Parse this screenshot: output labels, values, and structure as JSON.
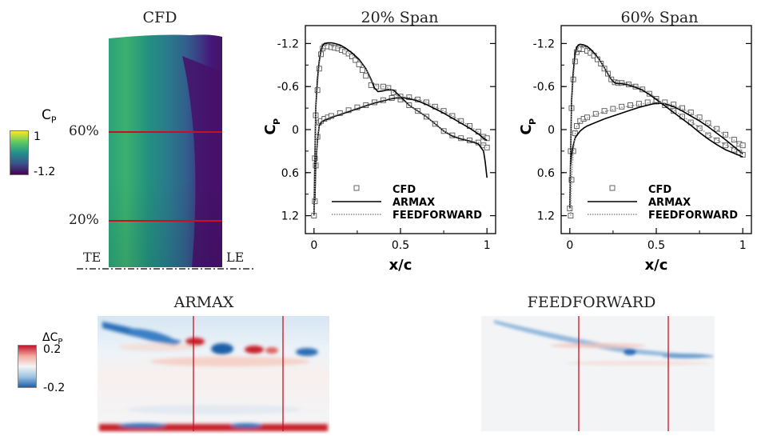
{
  "panels": {
    "cfd_contour": {
      "title": "CFD",
      "span_labels": [
        "60%",
        "20%"
      ],
      "edge_labels": {
        "te": "TE",
        "le": "LE"
      },
      "colorbar": {
        "label": "C",
        "sub": "P",
        "max": "1",
        "min": "-1.2",
        "colors": [
          "#440154",
          "#3b528b",
          "#21918c",
          "#5ec962",
          "#fde725"
        ]
      }
    },
    "armax_contour": {
      "title": "ARMAX"
    },
    "feedforward_contour": {
      "title": "FEEDFORWARD"
    },
    "error_colorbar": {
      "label": "ΔC",
      "sub": "P",
      "max": "0.2",
      "min": "-0.2",
      "colors": [
        "#1f5fa8",
        "#9cc4e4",
        "#f5f5f5",
        "#f4a9a0",
        "#c0152a"
      ]
    },
    "line_color": "#c8101e"
  },
  "chart_data": [
    {
      "type": "line",
      "title": "20% Span",
      "xlabel": "x/c",
      "ylabel": "C",
      "ylabel_sub": "P",
      "xlim": [
        -0.05,
        1.05
      ],
      "ylim": [
        1.45,
        -1.45
      ],
      "y_inverted": true,
      "xticks": [
        "0",
        "0.5",
        "1"
      ],
      "yticks": [
        "-1.2",
        "-0.6",
        "0",
        "0.6",
        "1.2"
      ],
      "grid": false,
      "legend_position": "bottom-right",
      "series": [
        {
          "name": "CFD",
          "style": "markers",
          "upper": {
            "x": [
              0,
              0.005,
              0.01,
              0.02,
              0.03,
              0.04,
              0.05,
              0.06,
              0.08,
              0.1,
              0.12,
              0.14,
              0.16,
              0.18,
              0.2,
              0.22,
              0.24,
              0.26,
              0.28,
              0.3,
              0.33,
              0.36,
              0.4,
              0.43,
              0.46,
              0.5,
              0.55,
              0.6,
              0.65,
              0.7,
              0.75,
              0.8,
              0.85,
              0.9,
              0.95,
              0.98,
              1.0
            ],
            "y": [
              1.2,
              0.4,
              -0.2,
              -0.55,
              -0.85,
              -1.05,
              -1.13,
              -1.16,
              -1.16,
              -1.15,
              -1.14,
              -1.13,
              -1.11,
              -1.09,
              -1.06,
              -1.02,
              -0.97,
              -0.91,
              -0.83,
              -0.75,
              -0.62,
              -0.6,
              -0.6,
              -0.58,
              -0.52,
              -0.42,
              -0.34,
              -0.26,
              -0.18,
              -0.08,
              0.02,
              0.08,
              0.12,
              0.15,
              0.18,
              0.22,
              0.25
            ]
          },
          "lower": {
            "x": [
              0.005,
              0.01,
              0.02,
              0.03,
              0.04,
              0.06,
              0.08,
              0.1,
              0.15,
              0.2,
              0.25,
              0.3,
              0.35,
              0.4,
              0.45,
              0.5,
              0.55,
              0.6,
              0.65,
              0.7,
              0.75,
              0.8,
              0.85,
              0.9,
              0.95,
              0.98,
              1.0
            ],
            "y": [
              1.0,
              0.5,
              0.1,
              -0.1,
              -0.12,
              -0.15,
              -0.17,
              -0.19,
              -0.23,
              -0.27,
              -0.31,
              -0.34,
              -0.38,
              -0.41,
              -0.44,
              -0.46,
              -0.45,
              -0.42,
              -0.38,
              -0.32,
              -0.26,
              -0.19,
              -0.12,
              -0.05,
              0.03,
              0.1,
              0.12
            ]
          }
        },
        {
          "name": "ARMAX",
          "style": "solid",
          "upper": {
            "x": [
              0,
              0.005,
              0.01,
              0.02,
              0.03,
              0.04,
              0.05,
              0.06,
              0.08,
              0.1,
              0.12,
              0.15,
              0.18,
              0.22,
              0.26,
              0.3,
              0.33,
              0.35,
              0.37,
              0.4,
              0.43,
              0.46,
              0.5,
              0.55,
              0.6,
              0.65,
              0.7,
              0.75,
              0.8,
              0.85,
              0.9,
              0.95,
              0.98,
              0.99,
              1.0
            ],
            "y": [
              1.2,
              0.4,
              -0.3,
              -0.7,
              -0.95,
              -1.1,
              -1.17,
              -1.2,
              -1.21,
              -1.21,
              -1.2,
              -1.18,
              -1.14,
              -1.07,
              -0.98,
              -0.85,
              -0.7,
              -0.58,
              -0.53,
              -0.54,
              -0.56,
              -0.55,
              -0.46,
              -0.34,
              -0.26,
              -0.18,
              -0.08,
              0.02,
              0.09,
              0.13,
              0.16,
              0.2,
              0.3,
              0.45,
              0.67
            ]
          },
          "lower": {
            "x": [
              0.005,
              0.01,
              0.02,
              0.03,
              0.04,
              0.06,
              0.08,
              0.1,
              0.15,
              0.2,
              0.25,
              0.3,
              0.35,
              0.4,
              0.45,
              0.5,
              0.55,
              0.6,
              0.65,
              0.7,
              0.75,
              0.8,
              0.85,
              0.9,
              0.95,
              0.98,
              1.0
            ],
            "y": [
              1.0,
              0.5,
              0.15,
              -0.05,
              -0.1,
              -0.13,
              -0.15,
              -0.17,
              -0.21,
              -0.25,
              -0.29,
              -0.33,
              -0.37,
              -0.4,
              -0.43,
              -0.45,
              -0.43,
              -0.4,
              -0.35,
              -0.29,
              -0.23,
              -0.16,
              -0.09,
              -0.02,
              0.06,
              0.12,
              0.15
            ]
          }
        },
        {
          "name": "FEEDFORWARD",
          "style": "dotted",
          "upper": {
            "x": [
              0,
              0.005,
              0.01,
              0.02,
              0.03,
              0.04,
              0.05,
              0.06,
              0.08,
              0.1,
              0.12,
              0.15,
              0.18,
              0.22,
              0.26,
              0.3,
              0.33,
              0.36,
              0.4,
              0.43,
              0.46,
              0.5,
              0.55,
              0.6,
              0.65,
              0.7,
              0.75,
              0.8,
              0.85,
              0.9,
              0.95,
              0.98,
              1.0
            ],
            "y": [
              1.2,
              0.4,
              -0.25,
              -0.6,
              -0.9,
              -1.07,
              -1.14,
              -1.17,
              -1.18,
              -1.17,
              -1.15,
              -1.13,
              -1.1,
              -1.04,
              -0.96,
              -0.84,
              -0.68,
              -0.61,
              -0.6,
              -0.58,
              -0.52,
              -0.43,
              -0.34,
              -0.26,
              -0.18,
              -0.08,
              0.02,
              0.08,
              0.12,
              0.15,
              0.18,
              0.22,
              0.25
            ]
          },
          "lower": {
            "x": [
              0.005,
              0.01,
              0.02,
              0.03,
              0.04,
              0.06,
              0.08,
              0.1,
              0.15,
              0.2,
              0.25,
              0.3,
              0.35,
              0.4,
              0.45,
              0.5,
              0.55,
              0.6,
              0.65,
              0.7,
              0.75,
              0.8,
              0.85,
              0.9,
              0.95,
              0.98,
              1.0
            ],
            "y": [
              1.0,
              0.5,
              0.12,
              -0.08,
              -0.11,
              -0.14,
              -0.16,
              -0.18,
              -0.22,
              -0.26,
              -0.3,
              -0.34,
              -0.38,
              -0.41,
              -0.44,
              -0.46,
              -0.45,
              -0.42,
              -0.38,
              -0.32,
              -0.26,
              -0.19,
              -0.12,
              -0.05,
              0.03,
              0.1,
              0.12
            ]
          }
        }
      ]
    },
    {
      "type": "line",
      "title": "60% Span",
      "xlabel": "x/c",
      "ylabel": "C",
      "ylabel_sub": "P",
      "xlim": [
        -0.05,
        1.05
      ],
      "ylim": [
        1.45,
        -1.45
      ],
      "y_inverted": true,
      "xticks": [
        "0",
        "0.5",
        "1"
      ],
      "yticks": [
        "-1.2",
        "-0.6",
        "0",
        "0.6",
        "1.2"
      ],
      "grid": false,
      "legend_position": "bottom-right",
      "series": [
        {
          "name": "CFD",
          "style": "markers",
          "upper": {
            "x": [
              0,
              0.005,
              0.01,
              0.02,
              0.03,
              0.04,
              0.05,
              0.06,
              0.08,
              0.1,
              0.12,
              0.14,
              0.16,
              0.18,
              0.2,
              0.22,
              0.24,
              0.26,
              0.28,
              0.3,
              0.34,
              0.38,
              0.42,
              0.46,
              0.5,
              0.55,
              0.6,
              0.65,
              0.7,
              0.75,
              0.8,
              0.85,
              0.9,
              0.95,
              0.98,
              1.0
            ],
            "y": [
              1.1,
              0.3,
              -0.3,
              -0.7,
              -0.95,
              -1.08,
              -1.12,
              -1.13,
              -1.12,
              -1.1,
              -1.07,
              -1.03,
              -0.98,
              -0.92,
              -0.85,
              -0.78,
              -0.7,
              -0.66,
              -0.65,
              -0.65,
              -0.63,
              -0.6,
              -0.56,
              -0.5,
              -0.43,
              -0.34,
              -0.26,
              -0.18,
              -0.1,
              -0.02,
              0.08,
              0.15,
              0.22,
              0.28,
              0.32,
              0.35
            ]
          },
          "lower": {
            "x": [
              0.005,
              0.01,
              0.02,
              0.03,
              0.04,
              0.06,
              0.08,
              0.1,
              0.15,
              0.2,
              0.25,
              0.3,
              0.35,
              0.4,
              0.45,
              0.5,
              0.55,
              0.6,
              0.65,
              0.7,
              0.75,
              0.8,
              0.85,
              0.9,
              0.95,
              0.98,
              1.0
            ],
            "y": [
              1.2,
              0.7,
              0.3,
              0.05,
              -0.05,
              -0.12,
              -0.15,
              -0.17,
              -0.22,
              -0.26,
              -0.29,
              -0.32,
              -0.34,
              -0.36,
              -0.38,
              -0.39,
              -0.38,
              -0.35,
              -0.3,
              -0.24,
              -0.17,
              -0.09,
              -0.01,
              0.07,
              0.14,
              0.2,
              0.22
            ]
          }
        },
        {
          "name": "ARMAX",
          "style": "solid",
          "upper": {
            "x": [
              0,
              0.005,
              0.01,
              0.02,
              0.03,
              0.04,
              0.05,
              0.06,
              0.08,
              0.1,
              0.12,
              0.14,
              0.16,
              0.18,
              0.2,
              0.22,
              0.24,
              0.26,
              0.28,
              0.3,
              0.34,
              0.38,
              0.42,
              0.46,
              0.5,
              0.55,
              0.6,
              0.65,
              0.7,
              0.75,
              0.8,
              0.85,
              0.9,
              0.95,
              0.98,
              1.0
            ],
            "y": [
              1.1,
              0.3,
              -0.4,
              -0.8,
              -1.05,
              -1.15,
              -1.18,
              -1.19,
              -1.18,
              -1.16,
              -1.12,
              -1.07,
              -1.01,
              -0.94,
              -0.86,
              -0.78,
              -0.7,
              -0.65,
              -0.64,
              -0.64,
              -0.62,
              -0.59,
              -0.55,
              -0.49,
              -0.42,
              -0.33,
              -0.24,
              -0.15,
              -0.06,
              0.04,
              0.13,
              0.21,
              0.28,
              0.33,
              0.36,
              0.38
            ]
          },
          "lower": {
            "x": [
              0.005,
              0.01,
              0.02,
              0.03,
              0.04,
              0.06,
              0.08,
              0.1,
              0.15,
              0.2,
              0.25,
              0.3,
              0.35,
              0.4,
              0.45,
              0.5,
              0.55,
              0.6,
              0.65,
              0.7,
              0.75,
              0.8,
              0.85,
              0.9,
              0.95,
              0.98,
              1.0
            ],
            "y": [
              0.5,
              0.35,
              0.22,
              0.12,
              0.08,
              0.02,
              -0.02,
              -0.05,
              -0.1,
              -0.15,
              -0.19,
              -0.23,
              -0.27,
              -0.31,
              -0.34,
              -0.37,
              -0.36,
              -0.32,
              -0.26,
              -0.19,
              -0.12,
              -0.04,
              0.05,
              0.14,
              0.24,
              0.3,
              0.34
            ]
          }
        },
        {
          "name": "FEEDFORWARD",
          "style": "dotted",
          "upper": {
            "x": [
              0,
              0.005,
              0.01,
              0.02,
              0.03,
              0.04,
              0.05,
              0.06,
              0.08,
              0.1,
              0.12,
              0.14,
              0.16,
              0.18,
              0.2,
              0.22,
              0.24,
              0.26,
              0.28,
              0.3,
              0.34,
              0.38,
              0.42,
              0.46,
              0.5,
              0.55,
              0.6,
              0.65,
              0.7,
              0.75,
              0.8,
              0.85,
              0.9,
              0.95,
              0.98,
              1.0
            ],
            "y": [
              1.1,
              0.3,
              -0.32,
              -0.72,
              -0.97,
              -1.1,
              -1.14,
              -1.15,
              -1.14,
              -1.12,
              -1.09,
              -1.05,
              -1.0,
              -0.94,
              -0.86,
              -0.79,
              -0.71,
              -0.67,
              -0.66,
              -0.66,
              -0.64,
              -0.61,
              -0.57,
              -0.51,
              -0.44,
              -0.35,
              -0.27,
              -0.19,
              -0.11,
              -0.03,
              0.07,
              0.14,
              0.21,
              0.27,
              0.31,
              0.34
            ]
          },
          "lower": {
            "x": [
              0.005,
              0.01,
              0.02,
              0.03,
              0.04,
              0.06,
              0.08,
              0.1,
              0.15,
              0.2,
              0.25,
              0.3,
              0.35,
              0.4,
              0.45,
              0.5,
              0.55,
              0.6,
              0.65,
              0.7,
              0.75,
              0.8,
              0.85,
              0.9,
              0.95,
              0.98,
              1.0
            ],
            "y": [
              1.2,
              0.7,
              0.32,
              0.07,
              -0.04,
              -0.11,
              -0.14,
              -0.16,
              -0.21,
              -0.25,
              -0.28,
              -0.31,
              -0.33,
              -0.35,
              -0.37,
              -0.38,
              -0.37,
              -0.34,
              -0.29,
              -0.23,
              -0.16,
              -0.08,
              0.0,
              0.08,
              0.15,
              0.21,
              0.23
            ]
          }
        }
      ]
    }
  ]
}
